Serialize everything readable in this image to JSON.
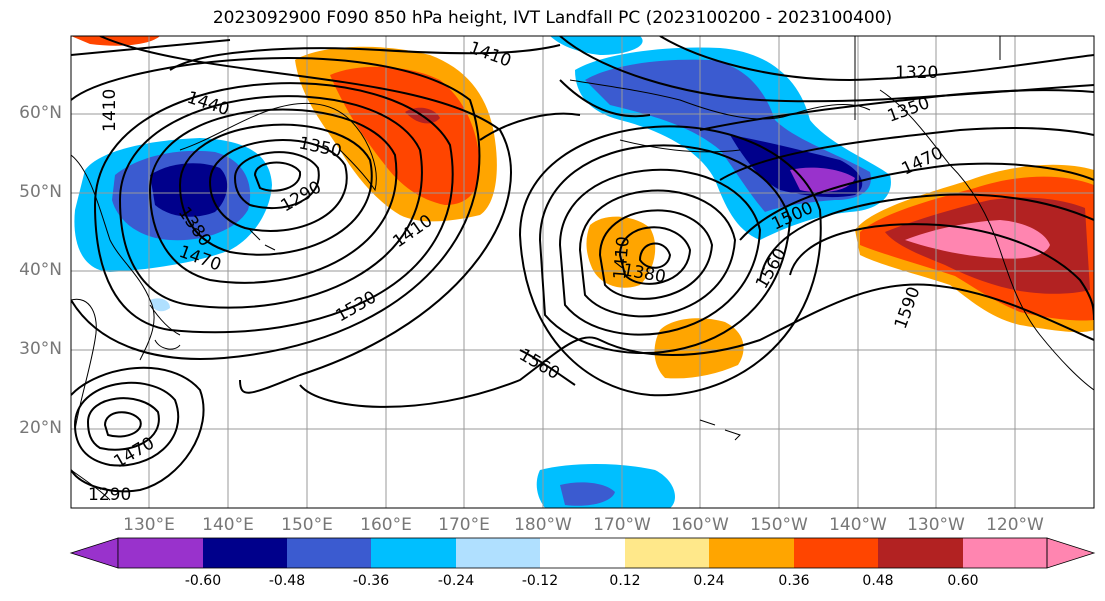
{
  "title": "2023092900 F090 850 hPa height, IVT Landfall PC (2023100200 - 2023100400)",
  "lat_labels": [
    "60°N",
    "50°N",
    "40°N",
    "30°N",
    "20°N"
  ],
  "lon_labels": [
    "130°E",
    "140°E",
    "150°E",
    "160°E",
    "170°E",
    "180°W",
    "170°W",
    "160°W",
    "150°W",
    "140°W",
    "130°W",
    "120°W"
  ],
  "contour_labels": [
    "1410",
    "1440",
    "1350",
    "1290",
    "1380",
    "1470",
    "1410",
    "1530",
    "1560",
    "1410",
    "1380",
    "1560",
    "1500",
    "1590",
    "1470",
    "1320",
    "1350",
    "1470",
    "1410",
    "1290"
  ],
  "colorbar": {
    "colors": [
      "#9932cc",
      "#00008b",
      "#3b5bd0",
      "#00bfff",
      "#b0e0ff",
      "#ffffff",
      "#ffffff",
      "#ffe88a",
      "#ffa500",
      "#ff4500",
      "#b22222",
      "#ff85b0"
    ],
    "tick_labels": [
      "-0.60",
      "-0.48",
      "-0.36",
      "-0.24",
      "-0.12",
      "0.12",
      "0.24",
      "0.36",
      "0.48",
      "0.60"
    ]
  }
}
